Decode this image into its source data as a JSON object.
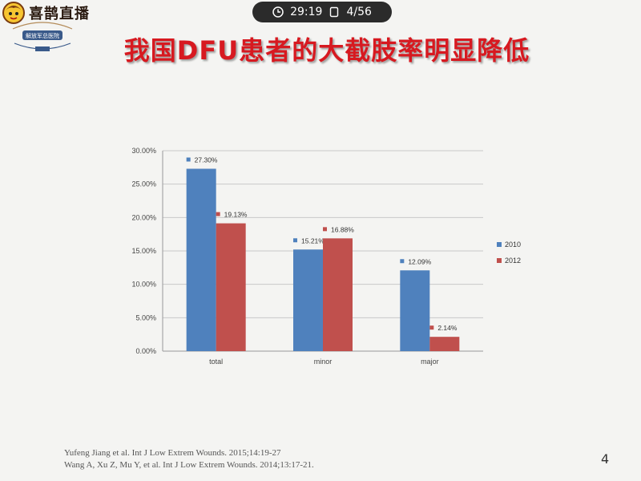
{
  "brand": {
    "name": "喜鹊直播",
    "logo_icon": "magpie-mascot-icon"
  },
  "seal": {
    "icon": "hospital-seal-icon",
    "text": "解放军总医院"
  },
  "player": {
    "elapsed": "29:19",
    "page_indicator": "4/56",
    "clock_icon": "clock-icon",
    "page_icon": "page-icon"
  },
  "slide": {
    "title": "我国DFU患者的大截肢率明显降低",
    "page_number": "4",
    "references": [
      "Yufeng Jiang et al.  Int J Low Extrem Wounds. 2015;14:19-27",
      "Wang A, Xu Z, Mu Y, et al. Int J Low Extrem Wounds. 2014;13:17-21."
    ]
  },
  "chart_data": {
    "type": "bar",
    "categories": [
      "total",
      "minor",
      "major"
    ],
    "series": [
      {
        "name": "2010",
        "values": [
          27.3,
          15.21,
          12.09
        ],
        "labels": [
          "27.30%",
          "15.21%",
          "12.09%"
        ],
        "color": "#4f81bd"
      },
      {
        "name": "2012",
        "values": [
          19.13,
          16.88,
          2.14
        ],
        "labels": [
          "19.13%",
          "16.88%",
          "2.14%"
        ],
        "color": "#c0504d"
      }
    ],
    "ylim": [
      0,
      30
    ],
    "yticks": [
      "0.00%",
      "5.00%",
      "10.00%",
      "15.00%",
      "20.00%",
      "25.00%",
      "30.00%"
    ],
    "grid": true,
    "legend_position": "right"
  }
}
